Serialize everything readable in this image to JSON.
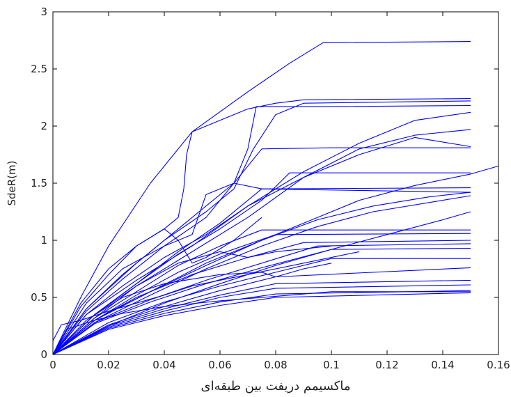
{
  "chart_data": {
    "type": "line",
    "title": "",
    "xlabel": "ماکسیمم دریفت بین طبقه‌ای",
    "ylabel": "SdeR(m)",
    "xlim": [
      0,
      0.16
    ],
    "ylim": [
      0,
      3
    ],
    "xticks": [
      0,
      0.02,
      0.04,
      0.06,
      0.08,
      0.1,
      0.12,
      0.14,
      0.16
    ],
    "xtick_labels": [
      "0",
      "0.02",
      "0.04",
      "0.06",
      "0.08",
      "0.1",
      "0.12",
      "0.14",
      "0.16"
    ],
    "yticks": [
      0,
      0.5,
      1,
      1.5,
      2,
      2.5,
      3
    ],
    "ytick_labels": [
      "0",
      "0.5",
      "1",
      "1.5",
      "2",
      "2.5",
      "3"
    ],
    "grid": false,
    "legend": false,
    "line_color": "#0000ff",
    "series": [
      {
        "x": [
          0,
          0.01,
          0.02,
          0.035,
          0.05,
          0.07,
          0.085,
          0.097,
          0.15
        ],
        "y": [
          0,
          0.5,
          0.95,
          1.5,
          1.95,
          2.3,
          2.55,
          2.73,
          2.74
        ]
      },
      {
        "x": [
          0,
          0.01,
          0.02,
          0.03,
          0.04,
          0.045,
          0.047,
          0.048,
          0.05,
          0.06,
          0.07,
          0.08,
          0.09,
          0.15
        ],
        "y": [
          0,
          0.45,
          0.75,
          0.95,
          1.1,
          1.2,
          1.45,
          1.75,
          1.95,
          2.05,
          2.15,
          2.2,
          2.23,
          2.24
        ]
      },
      {
        "x": [
          0,
          0.012,
          0.025,
          0.04,
          0.055,
          0.065,
          0.072,
          0.08,
          0.09,
          0.15
        ],
        "y": [
          0,
          0.4,
          0.7,
          1.0,
          1.25,
          1.45,
          1.8,
          2.1,
          2.2,
          2.22
        ]
      },
      {
        "x": [
          0,
          0.012,
          0.025,
          0.04,
          0.055,
          0.065,
          0.07,
          0.073,
          0.1,
          0.15
        ],
        "y": [
          0,
          0.38,
          0.66,
          0.95,
          1.2,
          1.5,
          1.8,
          2.17,
          2.17,
          2.18
        ]
      },
      {
        "x": [
          0,
          0.012,
          0.03,
          0.05,
          0.07,
          0.09,
          0.11,
          0.13,
          0.15
        ],
        "y": [
          0,
          0.35,
          0.65,
          0.95,
          1.3,
          1.6,
          1.85,
          2.05,
          2.12
        ]
      },
      {
        "x": [
          0,
          0.015,
          0.03,
          0.05,
          0.07,
          0.09,
          0.11,
          0.13,
          0.15
        ],
        "y": [
          0,
          0.32,
          0.6,
          0.9,
          1.2,
          1.55,
          1.8,
          1.92,
          1.97
        ]
      },
      {
        "x": [
          0,
          0.012,
          0.03,
          0.05,
          0.065,
          0.075,
          0.1,
          0.15
        ],
        "y": [
          0,
          0.4,
          0.8,
          1.2,
          1.5,
          1.8,
          1.81,
          1.81
        ]
      },
      {
        "x": [
          0,
          0.012,
          0.025,
          0.04,
          0.055,
          0.07,
          0.09,
          0.11,
          0.13,
          0.15
        ],
        "y": [
          0,
          0.35,
          0.6,
          0.85,
          1.05,
          1.3,
          1.55,
          1.75,
          1.9,
          1.82
        ]
      },
      {
        "x": [
          0,
          0.015,
          0.03,
          0.045,
          0.06,
          0.075,
          0.085,
          0.15
        ],
        "y": [
          0,
          0.35,
          0.62,
          0.88,
          1.1,
          1.35,
          1.59,
          1.59
        ]
      },
      {
        "x": [
          0,
          0.015,
          0.035,
          0.055,
          0.075,
          0.095,
          0.11,
          0.13,
          0.15,
          0.16
        ],
        "y": [
          0,
          0.3,
          0.55,
          0.8,
          1.0,
          1.2,
          1.35,
          1.48,
          1.58,
          1.65
        ]
      },
      {
        "x": [
          0,
          0.015,
          0.03,
          0.045,
          0.06,
          0.075,
          0.15
        ],
        "y": [
          0,
          0.35,
          0.62,
          0.9,
          1.15,
          1.45,
          1.46
        ]
      },
      {
        "x": [
          0,
          0.015,
          0.035,
          0.055,
          0.075,
          0.095,
          0.115,
          0.135,
          0.15
        ],
        "y": [
          0,
          0.3,
          0.55,
          0.78,
          1.0,
          1.18,
          1.3,
          1.38,
          1.42
        ]
      },
      {
        "x": [
          0,
          0.015,
          0.035,
          0.055,
          0.075,
          0.095,
          0.115,
          0.15
        ],
        "y": [
          0,
          0.28,
          0.52,
          0.75,
          0.95,
          1.12,
          1.25,
          1.39
        ]
      },
      {
        "x": [
          0,
          0.02,
          0.04,
          0.06,
          0.08,
          0.1,
          0.12,
          0.14,
          0.15
        ],
        "y": [
          0,
          0.25,
          0.45,
          0.62,
          0.78,
          0.92,
          1.05,
          1.18,
          1.25
        ]
      },
      {
        "x": [
          0,
          0.015,
          0.03,
          0.045,
          0.06,
          0.075,
          0.15
        ],
        "y": [
          0,
          0.32,
          0.55,
          0.78,
          0.95,
          1.09,
          1.09
        ]
      },
      {
        "x": [
          0,
          0.015,
          0.03,
          0.045,
          0.06,
          0.08,
          0.15
        ],
        "y": [
          0,
          0.3,
          0.52,
          0.72,
          0.88,
          1.05,
          1.06
        ]
      },
      {
        "x": [
          0,
          0.015,
          0.03,
          0.05,
          0.07,
          0.09,
          0.15
        ],
        "y": [
          0,
          0.3,
          0.5,
          0.7,
          0.85,
          0.98,
          1.0
        ]
      },
      {
        "x": [
          0,
          0.015,
          0.035,
          0.055,
          0.075,
          0.095,
          0.15
        ],
        "y": [
          0,
          0.28,
          0.48,
          0.65,
          0.8,
          0.95,
          0.97
        ]
      },
      {
        "x": [
          0,
          0.015,
          0.035,
          0.055,
          0.075,
          0.1,
          0.15
        ],
        "y": [
          0,
          0.27,
          0.46,
          0.62,
          0.76,
          0.92,
          0.93
        ]
      },
      {
        "x": [
          0,
          0.02,
          0.04,
          0.06,
          0.08,
          0.1,
          0.15
        ],
        "y": [
          0,
          0.28,
          0.46,
          0.6,
          0.72,
          0.84,
          0.84
        ]
      },
      {
        "x": [
          0,
          0.02,
          0.04,
          0.06,
          0.08,
          0.15
        ],
        "y": [
          0,
          0.26,
          0.42,
          0.56,
          0.68,
          0.76
        ]
      },
      {
        "x": [
          0,
          0.02,
          0.04,
          0.06,
          0.08,
          0.15
        ],
        "y": [
          0,
          0.25,
          0.4,
          0.52,
          0.62,
          0.65
        ]
      },
      {
        "x": [
          0,
          0.02,
          0.04,
          0.06,
          0.08,
          0.15
        ],
        "y": [
          0,
          0.24,
          0.38,
          0.5,
          0.58,
          0.61
        ]
      },
      {
        "x": [
          0,
          0.02,
          0.04,
          0.06,
          0.08,
          0.15
        ],
        "y": [
          0,
          0.23,
          0.36,
          0.46,
          0.53,
          0.56
        ]
      },
      {
        "x": [
          0,
          0.02,
          0.04,
          0.06,
          0.08,
          0.15
        ],
        "y": [
          0,
          0.22,
          0.34,
          0.43,
          0.5,
          0.54
        ]
      },
      {
        "x": [
          0,
          0.005,
          0.015,
          0.025,
          0.04,
          0.06,
          0.08,
          0.1,
          0.15
        ],
        "y": [
          0,
          0.22,
          0.3,
          0.36,
          0.42,
          0.47,
          0.51,
          0.55,
          0.55
        ]
      },
      {
        "x": [
          0,
          0.003,
          0.01,
          0.02,
          0.03,
          0.04,
          0.05,
          0.07,
          0.09,
          0.11
        ],
        "y": [
          0.12,
          0.26,
          0.3,
          0.38,
          0.45,
          0.52,
          0.6,
          0.7,
          0.8,
          0.9
        ]
      },
      {
        "x": [
          0,
          0.012,
          0.025,
          0.04,
          0.05,
          0.055,
          0.065,
          0.075,
          0.15
        ],
        "y": [
          0,
          0.45,
          0.75,
          0.95,
          1.05,
          1.4,
          1.5,
          1.45,
          1.42
        ]
      },
      {
        "x": [
          0,
          0.01,
          0.02,
          0.03,
          0.04,
          0.045,
          0.05,
          0.055,
          0.065,
          0.075
        ],
        "y": [
          0,
          0.42,
          0.7,
          0.95,
          1.1,
          1.0,
          0.8,
          0.85,
          1.0,
          1.2
        ]
      },
      {
        "x": [
          0,
          0.015,
          0.03,
          0.045,
          0.06,
          0.07,
          0.08,
          0.1
        ],
        "y": [
          0,
          0.35,
          0.6,
          0.8,
          0.9,
          0.85,
          0.9,
          0.95
        ]
      },
      {
        "x": [
          0,
          0.012,
          0.025,
          0.04,
          0.06,
          0.075,
          0.08,
          0.09,
          0.1
        ],
        "y": [
          0,
          0.3,
          0.5,
          0.62,
          0.7,
          0.72,
          0.68,
          0.75,
          0.8
        ]
      }
    ]
  }
}
